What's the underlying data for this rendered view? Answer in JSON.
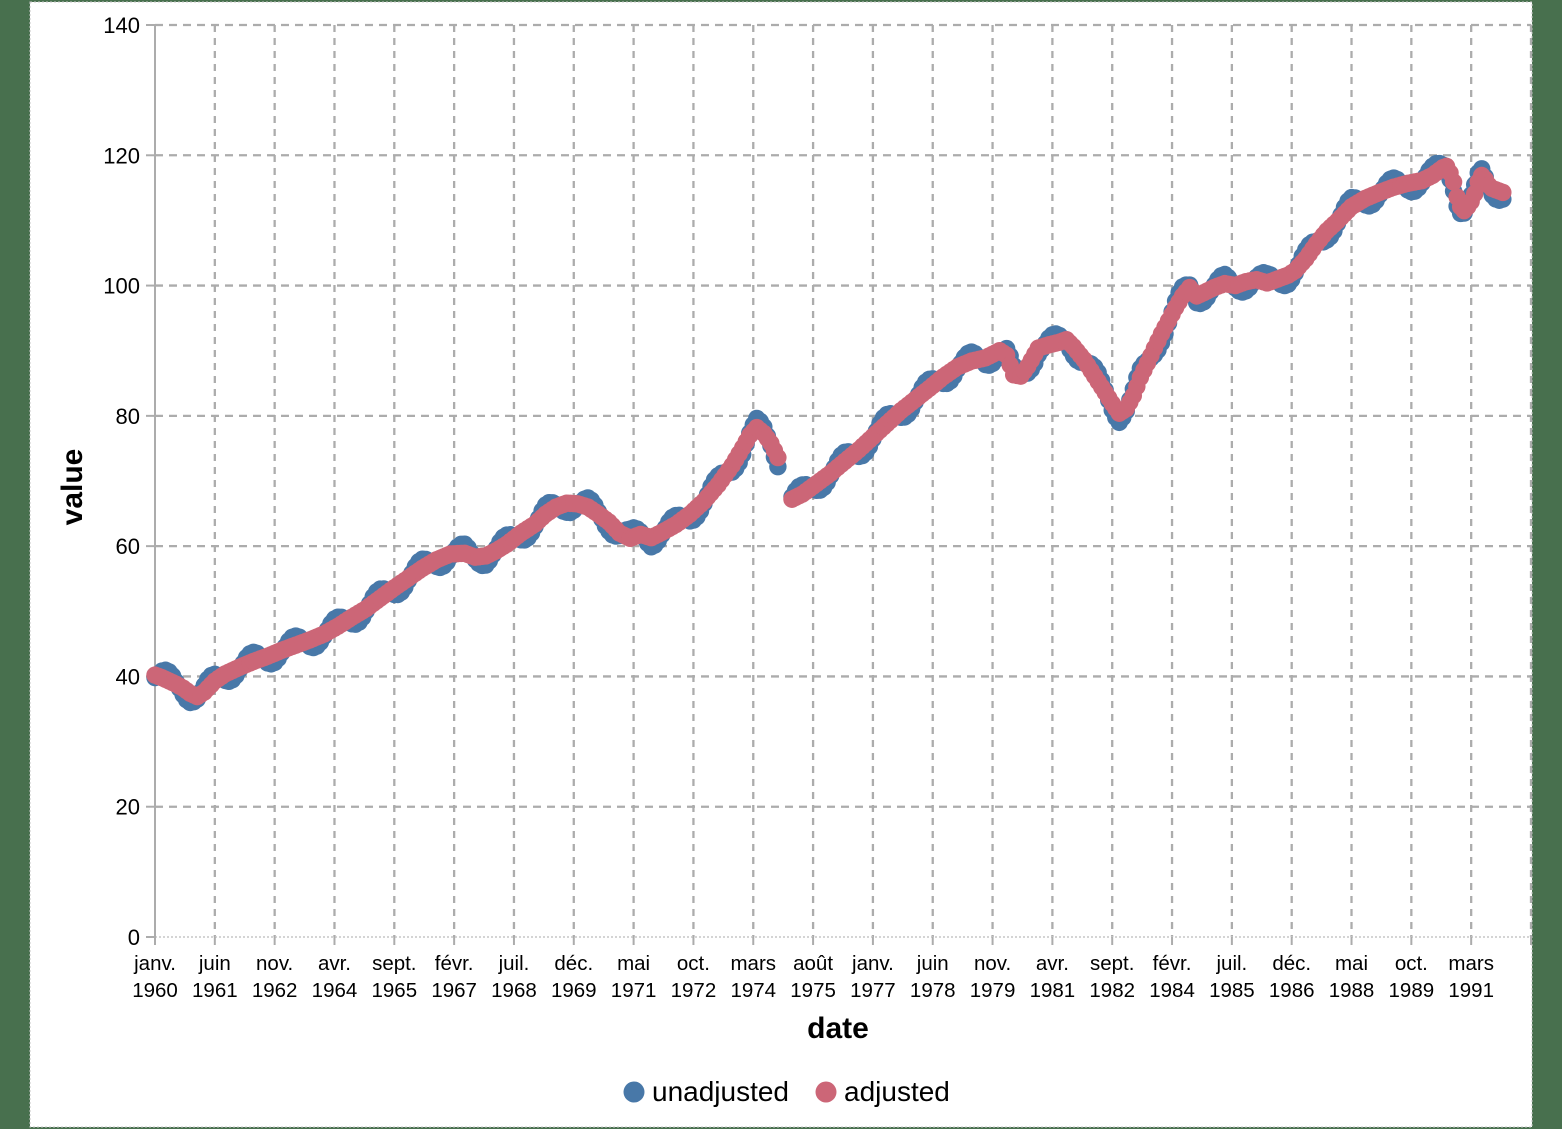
{
  "page": {
    "background_color": "#48704E",
    "canvas_color": "#FFFFFF",
    "canvas_border_color": "#C4C4C4"
  },
  "chart": {
    "grid_color": "#ACACAC",
    "axis_color": "#ACACAC",
    "baseline_color": "#C6C6C6",
    "text_color": "#000000",
    "y_axis": {
      "title": "value",
      "min": 0,
      "max": 140,
      "ticks": [
        0,
        20,
        40,
        60,
        80,
        100,
        120,
        140
      ]
    },
    "x_axis": {
      "title": "date",
      "label_interval_months": 17,
      "tick_labels": [
        {
          "month": "janv.",
          "year": "1960"
        },
        {
          "month": "juin",
          "year": "1961"
        },
        {
          "month": "nov.",
          "year": "1962"
        },
        {
          "month": "avr.",
          "year": "1964"
        },
        {
          "month": "sept.",
          "year": "1965"
        },
        {
          "month": "févr.",
          "year": "1967"
        },
        {
          "month": "juil.",
          "year": "1968"
        },
        {
          "month": "déc.",
          "year": "1969"
        },
        {
          "month": "mai",
          "year": "1971"
        },
        {
          "month": "oct.",
          "year": "1972"
        },
        {
          "month": "mars",
          "year": "1974"
        },
        {
          "month": "août",
          "year": "1975"
        },
        {
          "month": "janv.",
          "year": "1977"
        },
        {
          "month": "juin",
          "year": "1978"
        },
        {
          "month": "nov.",
          "year": "1979"
        },
        {
          "month": "avr.",
          "year": "1981"
        },
        {
          "month": "sept.",
          "year": "1982"
        },
        {
          "month": "févr.",
          "year": "1984"
        },
        {
          "month": "juil.",
          "year": "1985"
        },
        {
          "month": "déc.",
          "year": "1986"
        },
        {
          "month": "mai",
          "year": "1988"
        },
        {
          "month": "oct.",
          "year": "1989"
        },
        {
          "month": "mars",
          "year": "1991"
        }
      ]
    },
    "legend": [
      {
        "label": "unadjusted",
        "color": "#4878A8"
      },
      {
        "label": "adjusted",
        "color": "#CC6677"
      }
    ]
  },
  "chart_data": {
    "type": "scatter",
    "title": "",
    "xlabel": "date",
    "ylabel": "value",
    "x_unit": "months since 1960-01",
    "x_range_months": [
      0,
      391
    ],
    "ylim": [
      0,
      140
    ],
    "grid": true,
    "legend_position": "bottom-center",
    "marker_radius_px": 8.7,
    "missing_months": [
      178,
      179,
      180
    ],
    "series": [
      {
        "name": "unadjusted",
        "color": "#4878A8",
        "derivation": "adjusted value plus seasonal offset",
        "seasonal_offset": {
          "amplitude": 1.45,
          "period_months": 12,
          "peak_month_index": 3.5
        }
      },
      {
        "name": "adjusted",
        "color": "#CC6677",
        "interpolation": "linear-monthly",
        "keypoints": [
          [
            0,
            40.2
          ],
          [
            2,
            39.8
          ],
          [
            4,
            39.3
          ],
          [
            6,
            38.8
          ],
          [
            8,
            38.2
          ],
          [
            10,
            37.4
          ],
          [
            12,
            36.9
          ],
          [
            14,
            37.6
          ],
          [
            17,
            39.3
          ],
          [
            20,
            40.4
          ],
          [
            24,
            41.4
          ],
          [
            28,
            42.3
          ],
          [
            32,
            43.1
          ],
          [
            36,
            44.0
          ],
          [
            40,
            44.8
          ],
          [
            44,
            45.6
          ],
          [
            48,
            46.5
          ],
          [
            52,
            47.7
          ],
          [
            56,
            49.1
          ],
          [
            60,
            50.4
          ],
          [
            64,
            52.0
          ],
          [
            68,
            53.6
          ],
          [
            72,
            55.1
          ],
          [
            76,
            56.6
          ],
          [
            80,
            57.9
          ],
          [
            84,
            58.8
          ],
          [
            88,
            58.9
          ],
          [
            91,
            58.3
          ],
          [
            94,
            58.5
          ],
          [
            97,
            59.3
          ],
          [
            100,
            60.3
          ],
          [
            104,
            62.0
          ],
          [
            108,
            63.4
          ],
          [
            111,
            64.9
          ],
          [
            114,
            66.0
          ],
          [
            117,
            66.6
          ],
          [
            120,
            66.5
          ],
          [
            123,
            66.0
          ],
          [
            126,
            64.9
          ],
          [
            129,
            63.7
          ],
          [
            132,
            62.0
          ],
          [
            135,
            61.2
          ],
          [
            138,
            61.8
          ],
          [
            141,
            61.3
          ],
          [
            144,
            62.1
          ],
          [
            148,
            63.3
          ],
          [
            152,
            64.9
          ],
          [
            156,
            66.9
          ],
          [
            160,
            69.4
          ],
          [
            164,
            72.4
          ],
          [
            167,
            75.1
          ],
          [
            169,
            77.0
          ],
          [
            171,
            78.2
          ],
          [
            173,
            77.3
          ],
          [
            175,
            75.8
          ],
          [
            177,
            73.6
          ],
          [
            181,
            67.2
          ],
          [
            184,
            68.0
          ],
          [
            188,
            69.6
          ],
          [
            192,
            71.2
          ],
          [
            196,
            73.0
          ],
          [
            200,
            74.8
          ],
          [
            204,
            76.8
          ],
          [
            208,
            78.8
          ],
          [
            212,
            80.8
          ],
          [
            216,
            82.5
          ],
          [
            220,
            84.2
          ],
          [
            224,
            86.0
          ],
          [
            228,
            87.5
          ],
          [
            232,
            88.4
          ],
          [
            236,
            88.9
          ],
          [
            240,
            90.0
          ],
          [
            242,
            89.3
          ],
          [
            244,
            86.3
          ],
          [
            246,
            86.1
          ],
          [
            248,
            87.6
          ],
          [
            251,
            90.4
          ],
          [
            254,
            90.9
          ],
          [
            257,
            91.3
          ],
          [
            259,
            91.7
          ],
          [
            261,
            90.6
          ],
          [
            264,
            88.6
          ],
          [
            267,
            86.1
          ],
          [
            270,
            83.6
          ],
          [
            272,
            81.9
          ],
          [
            274,
            80.4
          ],
          [
            276,
            81.1
          ],
          [
            278,
            83.1
          ],
          [
            280,
            85.9
          ],
          [
            282,
            88.1
          ],
          [
            284,
            90.4
          ],
          [
            286,
            92.6
          ],
          [
            288,
            94.6
          ],
          [
            290,
            96.6
          ],
          [
            292,
            98.4
          ],
          [
            294,
            99.7
          ],
          [
            296,
            98.4
          ],
          [
            298,
            98.9
          ],
          [
            301,
            99.7
          ],
          [
            304,
            100.3
          ],
          [
            307,
            100.0
          ],
          [
            310,
            100.6
          ],
          [
            313,
            100.9
          ],
          [
            316,
            100.4
          ],
          [
            319,
            101.0
          ],
          [
            322,
            101.6
          ],
          [
            324,
            102.3
          ],
          [
            327,
            104.1
          ],
          [
            330,
            106.4
          ],
          [
            333,
            108.4
          ],
          [
            336,
            109.9
          ],
          [
            340,
            112.1
          ],
          [
            344,
            113.4
          ],
          [
            348,
            114.3
          ],
          [
            352,
            115.1
          ],
          [
            356,
            115.7
          ],
          [
            360,
            116.1
          ],
          [
            363,
            116.9
          ],
          [
            366,
            118.1
          ],
          [
            367,
            118.3
          ],
          [
            368,
            117.3
          ],
          [
            369,
            115.9
          ],
          [
            370,
            113.6
          ],
          [
            371,
            112.1
          ],
          [
            372,
            111.5
          ],
          [
            373,
            112.1
          ],
          [
            374,
            112.9
          ],
          [
            375,
            114.1
          ],
          [
            376,
            115.9
          ],
          [
            377,
            116.9
          ],
          [
            378,
            116.3
          ],
          [
            379,
            115.4
          ],
          [
            380,
            114.9
          ],
          [
            381,
            114.7
          ],
          [
            382,
            114.5
          ],
          [
            383,
            114.3
          ]
        ]
      }
    ]
  }
}
